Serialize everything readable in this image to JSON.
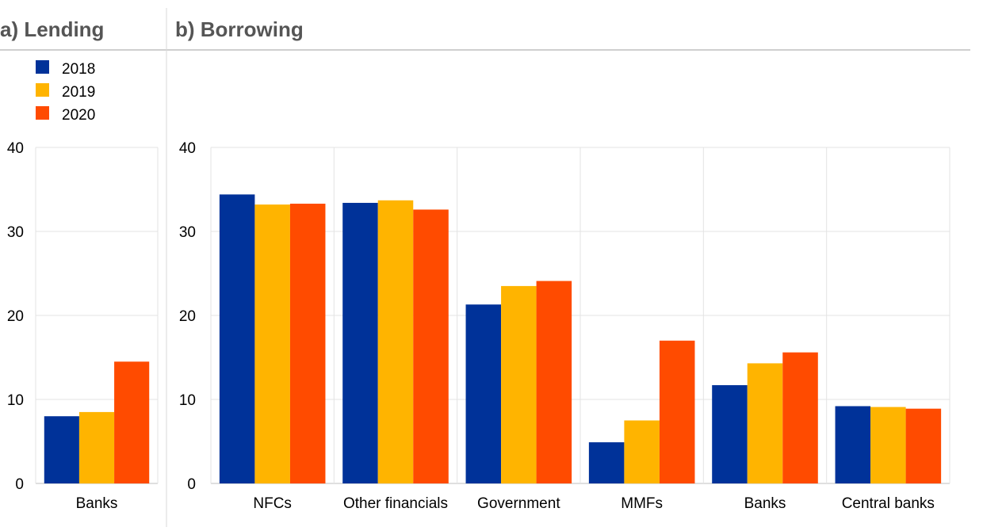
{
  "chart_data": [
    {
      "type": "bar",
      "panel_title": "a) Lending",
      "categories": [
        "Banks"
      ],
      "series": [
        {
          "name": "2018",
          "color": "#003299",
          "values": [
            8.0
          ]
        },
        {
          "name": "2019",
          "color": "#FFB400",
          "values": [
            8.5
          ]
        },
        {
          "name": "2020",
          "color": "#FF4B00",
          "values": [
            14.5
          ]
        }
      ],
      "ylim": [
        0,
        40
      ],
      "yticks": [
        0,
        10,
        20,
        30,
        40
      ],
      "grid": true,
      "legend": "top-left"
    },
    {
      "type": "bar",
      "panel_title": "b) Borrowing",
      "categories": [
        "NFCs",
        "Other financials",
        "Government",
        "MMFs",
        "Banks",
        "Central banks"
      ],
      "series": [
        {
          "name": "2018",
          "color": "#003299",
          "values": [
            34.4,
            33.4,
            21.3,
            4.9,
            11.7,
            9.2
          ]
        },
        {
          "name": "2019",
          "color": "#FFB400",
          "values": [
            33.2,
            33.7,
            23.5,
            7.5,
            14.3,
            9.1
          ]
        },
        {
          "name": "2020",
          "color": "#FF4B00",
          "values": [
            33.3,
            32.6,
            24.1,
            17.0,
            15.6,
            8.9
          ]
        }
      ],
      "ylim": [
        0,
        40
      ],
      "yticks": [
        0,
        10,
        20,
        30,
        40
      ],
      "grid": true
    }
  ],
  "legend": {
    "items": [
      {
        "label": "2018",
        "color": "#003299"
      },
      {
        "label": "2019",
        "color": "#FFB400"
      },
      {
        "label": "2020",
        "color": "#FF4B00"
      }
    ]
  }
}
